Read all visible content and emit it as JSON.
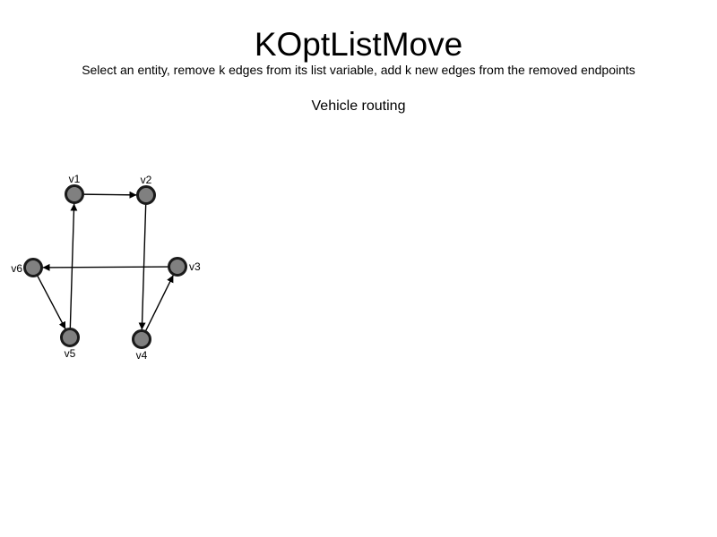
{
  "title": "KOptListMove",
  "subtitle": "Select an entity, remove k edges from its list variable, add k new edges from the removed endpoints",
  "diagram": {
    "section_title": "Vehicle routing",
    "node_fill": "#808080",
    "node_stroke": "#1a1a1a",
    "edge_color": "#000000",
    "nodes": [
      {
        "id": "v1",
        "label": "v1"
      },
      {
        "id": "v2",
        "label": "v2"
      },
      {
        "id": "v3",
        "label": "v3"
      },
      {
        "id": "v4",
        "label": "v4"
      },
      {
        "id": "v5",
        "label": "v5"
      },
      {
        "id": "v6",
        "label": "v6"
      }
    ],
    "edges": [
      {
        "from": "v1",
        "to": "v2"
      },
      {
        "from": "v2",
        "to": "v4"
      },
      {
        "from": "v4",
        "to": "v3"
      },
      {
        "from": "v3",
        "to": "v6"
      },
      {
        "from": "v6",
        "to": "v5"
      },
      {
        "from": "v5",
        "to": "v1"
      }
    ]
  }
}
